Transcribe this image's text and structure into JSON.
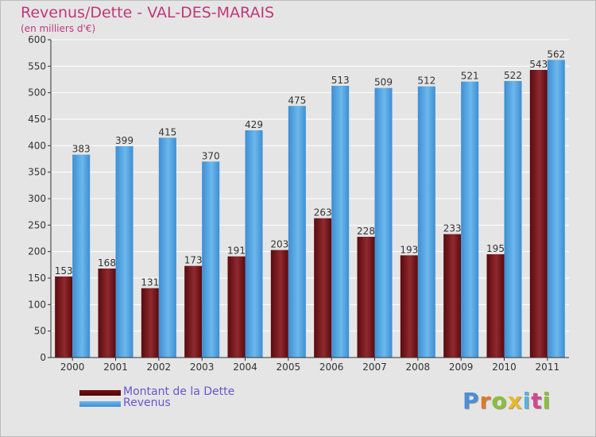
{
  "chart_data": {
    "type": "bar",
    "title": "Revenus/Dette - VAL-DES-MARAIS",
    "subtitle": "(en milliers d'€)",
    "categories": [
      "2000",
      "2001",
      "2002",
      "2003",
      "2004",
      "2005",
      "2006",
      "2007",
      "2008",
      "2009",
      "2010",
      "2011"
    ],
    "series": [
      {
        "name": "Montant de la Dette",
        "color": "#6b0b10",
        "values": [
          153,
          168,
          131,
          173,
          191,
          203,
          263,
          228,
          193,
          233,
          195,
          543
        ]
      },
      {
        "name": "Revenus",
        "color": "#3a8fd6",
        "values": [
          383,
          399,
          415,
          370,
          429,
          475,
          513,
          509,
          512,
          521,
          522,
          562
        ]
      }
    ],
    "ylim": [
      0,
      600
    ],
    "yticks": [
      0,
      50,
      100,
      150,
      200,
      250,
      300,
      350,
      400,
      450,
      500,
      550,
      600
    ],
    "grid": true,
    "legend_position": "bottom-left"
  },
  "logo_text": "Proxiti"
}
